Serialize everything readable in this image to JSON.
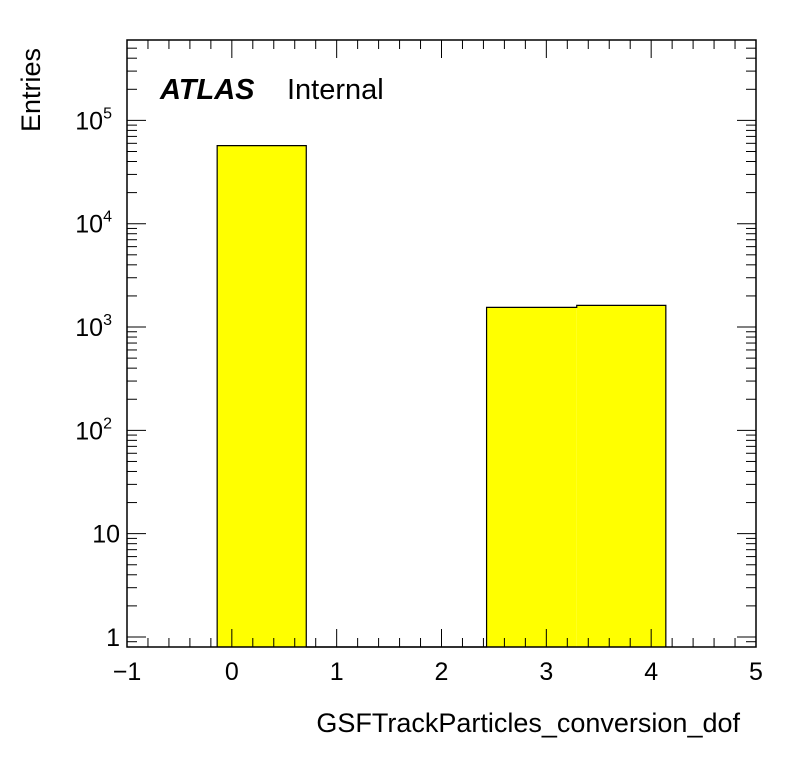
{
  "chart_data": {
    "type": "bar",
    "histogram": true,
    "xlabel": "GSFTrackParticles_conversion_dof",
    "ylabel": "Entries",
    "xlim": [
      -1,
      5
    ],
    "ylim": [
      0.8,
      600000
    ],
    "yscale": "log",
    "x_ticks": [
      {
        "value": -1,
        "label": "−1"
      },
      {
        "value": 0,
        "label": "0"
      },
      {
        "value": 1,
        "label": "1"
      },
      {
        "value": 2,
        "label": "2"
      },
      {
        "value": 3,
        "label": "3"
      },
      {
        "value": 4,
        "label": "4"
      },
      {
        "value": 5,
        "label": "5"
      }
    ],
    "y_ticks": [
      {
        "value": 1,
        "base": "1",
        "exp": ""
      },
      {
        "value": 10,
        "base": "10",
        "exp": ""
      },
      {
        "value": 100,
        "base": "10",
        "exp": "2"
      },
      {
        "value": 1000,
        "base": "10",
        "exp": "3"
      },
      {
        "value": 10000,
        "base": "10",
        "exp": "4"
      },
      {
        "value": 100000,
        "base": "10",
        "exp": "5"
      }
    ],
    "bins": [
      {
        "low": -0.14,
        "high": 0.71,
        "value": 57000
      },
      {
        "low": 0.71,
        "high": 1.57,
        "value": 0
      },
      {
        "low": 1.57,
        "high": 2.43,
        "value": 0
      },
      {
        "low": 2.43,
        "high": 3.29,
        "value": 1550
      },
      {
        "low": 3.29,
        "high": 4.14,
        "value": 1620
      }
    ],
    "fill_color": "#ffff00",
    "edge_color": "#000000",
    "grid": false,
    "annotation": {
      "bold": "ATLAS",
      "text": "Internal"
    }
  }
}
